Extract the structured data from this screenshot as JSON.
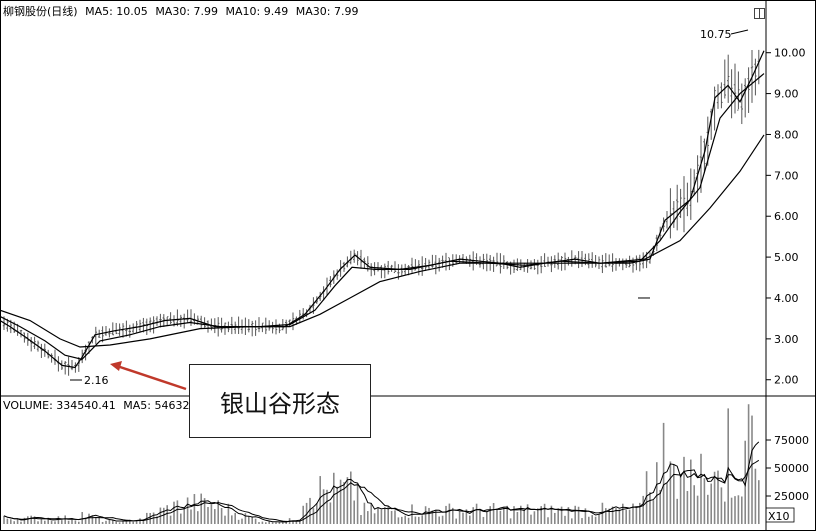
{
  "legend": {
    "name": "柳钢股份(日线)",
    "ma5": "MA5: 10.05",
    "ma30a": "MA30: 7.99",
    "ma10": "MA10: 9.49",
    "ma30b": "MA30: 7.99"
  },
  "volume_legend": {
    "volume": "VOLUME: 334540.41",
    "ma5": "MA5: 54632"
  },
  "annotation": {
    "box_text": "银山谷形态",
    "low_label": "2.16",
    "high_label": "10.75"
  },
  "colors": {
    "candle": "#555555",
    "ma": "#000000",
    "arrow": "#c0392b",
    "axis": "#000000",
    "background": "#ffffff"
  },
  "chart_data": [
    {
      "type": "line",
      "subtype": "candlestick-price",
      "title": "柳钢股份(日线)",
      "y_ticks": [
        "2.00",
        "3.00",
        "4.00",
        "5.00",
        "6.00",
        "7.00",
        "8.00",
        "9.00",
        "10.00"
      ],
      "ylim": [
        1.7,
        10.8
      ],
      "low_point": {
        "value": 2.16
      },
      "high_point": {
        "value": 10.75
      },
      "ma_fast": [
        [
          0,
          3.45
        ],
        [
          10,
          3.3
        ],
        [
          25,
          3.05
        ],
        [
          45,
          2.7
        ],
        [
          62,
          2.35
        ],
        [
          75,
          2.3
        ],
        [
          82,
          2.55
        ],
        [
          95,
          3.1
        ],
        [
          115,
          3.2
        ],
        [
          140,
          3.3
        ],
        [
          165,
          3.45
        ],
        [
          190,
          3.5
        ],
        [
          215,
          3.3
        ],
        [
          250,
          3.3
        ],
        [
          285,
          3.3
        ],
        [
          305,
          3.6
        ],
        [
          325,
          4.2
        ],
        [
          340,
          4.7
        ],
        [
          355,
          5.05
        ],
        [
          370,
          4.75
        ],
        [
          400,
          4.7
        ],
        [
          430,
          4.8
        ],
        [
          460,
          4.95
        ],
        [
          480,
          4.9
        ],
        [
          500,
          4.85
        ],
        [
          520,
          4.75
        ],
        [
          545,
          4.85
        ],
        [
          575,
          4.95
        ],
        [
          600,
          4.85
        ],
        [
          630,
          4.85
        ],
        [
          650,
          4.95
        ],
        [
          665,
          5.9
        ],
        [
          690,
          6.4
        ],
        [
          705,
          7.6
        ],
        [
          715,
          8.9
        ],
        [
          728,
          9.2
        ],
        [
          740,
          8.8
        ],
        [
          752,
          9.4
        ],
        [
          764,
          10.05
        ]
      ],
      "ma_mid": [
        [
          0,
          3.55
        ],
        [
          20,
          3.3
        ],
        [
          45,
          2.95
        ],
        [
          65,
          2.6
        ],
        [
          82,
          2.5
        ],
        [
          100,
          2.95
        ],
        [
          130,
          3.1
        ],
        [
          160,
          3.3
        ],
        [
          190,
          3.4
        ],
        [
          220,
          3.3
        ],
        [
          260,
          3.3
        ],
        [
          290,
          3.35
        ],
        [
          315,
          3.7
        ],
        [
          335,
          4.3
        ],
        [
          352,
          4.75
        ],
        [
          375,
          4.7
        ],
        [
          410,
          4.7
        ],
        [
          450,
          4.9
        ],
        [
          490,
          4.85
        ],
        [
          525,
          4.8
        ],
        [
          560,
          4.9
        ],
        [
          600,
          4.85
        ],
        [
          640,
          4.9
        ],
        [
          660,
          5.4
        ],
        [
          680,
          6.1
        ],
        [
          700,
          6.7
        ],
        [
          720,
          8.4
        ],
        [
          740,
          9.0
        ],
        [
          764,
          9.49
        ]
      ],
      "ma_slow": [
        [
          0,
          3.7
        ],
        [
          30,
          3.45
        ],
        [
          60,
          3.0
        ],
        [
          80,
          2.8
        ],
        [
          110,
          2.85
        ],
        [
          150,
          3.0
        ],
        [
          200,
          3.25
        ],
        [
          250,
          3.3
        ],
        [
          290,
          3.3
        ],
        [
          320,
          3.6
        ],
        [
          350,
          4.0
        ],
        [
          380,
          4.4
        ],
        [
          420,
          4.65
        ],
        [
          460,
          4.85
        ],
        [
          500,
          4.85
        ],
        [
          550,
          4.85
        ],
        [
          600,
          4.85
        ],
        [
          645,
          4.95
        ],
        [
          680,
          5.4
        ],
        [
          710,
          6.2
        ],
        [
          740,
          7.1
        ],
        [
          764,
          7.99
        ]
      ]
    },
    {
      "type": "bar",
      "subtype": "volume",
      "title": "VOLUME",
      "y_ticks": [
        "25000",
        "50000",
        "75000"
      ],
      "scale_label": "X10",
      "ylim": [
        0,
        100000
      ]
    }
  ]
}
